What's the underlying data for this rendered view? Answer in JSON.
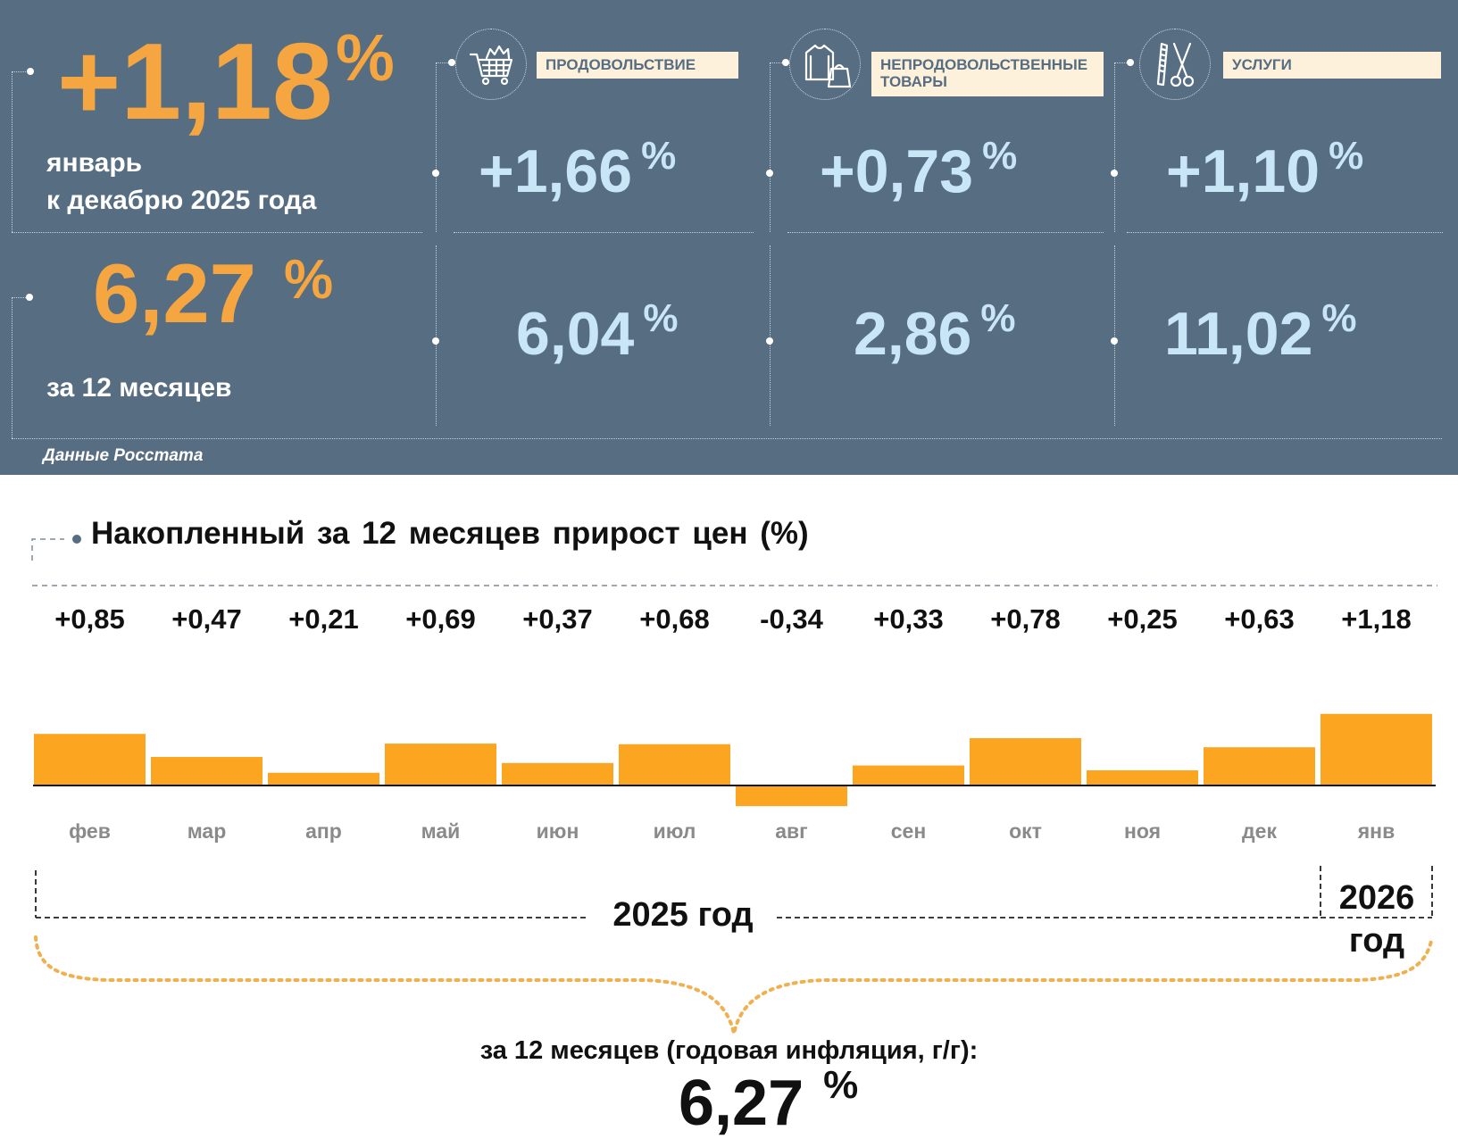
{
  "summary": {
    "monthly": {
      "value": "+1,18",
      "unit": "%",
      "caption_line1": "январь",
      "caption_line2": "к декабрю 2025 года"
    },
    "annual": {
      "value": "6,27",
      "unit": "%",
      "caption": "за 12 месяцев"
    },
    "source": "Данные Росстата"
  },
  "categories": [
    {
      "label": "ПРОДОВОЛЬСТВИЕ",
      "icon": "shopping-cart-icon",
      "monthly": "+1,66",
      "annual": "6,04",
      "unit": "%"
    },
    {
      "label": "НЕПРОДОВОЛЬСТВЕННЫЕ\nТОВАРЫ",
      "icon": "clothes-icon",
      "monthly": "+0,73",
      "annual": "2,86",
      "unit": "%"
    },
    {
      "label": "УСЛУГИ",
      "icon": "comb-scissors-icon",
      "monthly": "+1,10",
      "annual": "11,02",
      "unit": "%"
    }
  ],
  "colors": {
    "panel_bg": "#566d82",
    "accent_orange": "#f5a640",
    "bar_orange": "#fba521",
    "value_blue": "#c9e6f6",
    "label_bg": "#fdf1dc",
    "brace": "#f0b050"
  },
  "chart_data": {
    "type": "bar",
    "title": "Накопленный за 12 месяцев прирост цен (%)",
    "categories": [
      "фев",
      "мар",
      "апр",
      "май",
      "июн",
      "июл",
      "авг",
      "сен",
      "окт",
      "ноя",
      "дек",
      "янв"
    ],
    "value_labels": [
      "+0,85",
      "+0,47",
      "+0,21",
      "+0,69",
      "+0,37",
      "+0,68",
      "-0,34",
      "+0,33",
      "+0,78",
      "+0,25",
      "+0,63",
      "+1,18"
    ],
    "values": [
      0.85,
      0.47,
      0.21,
      0.69,
      0.37,
      0.68,
      -0.34,
      0.33,
      0.78,
      0.25,
      0.63,
      1.18
    ],
    "ylim": [
      -0.34,
      1.18
    ],
    "grid": false,
    "year_groups": [
      {
        "label": "2025 год",
        "months": 11
      },
      {
        "label": "2026\nгод",
        "months": 1
      }
    ],
    "annual_caption": "за 12 месяцев (годовая инфляция, г/г):",
    "annual_value": "6,27",
    "annual_unit": "%"
  }
}
